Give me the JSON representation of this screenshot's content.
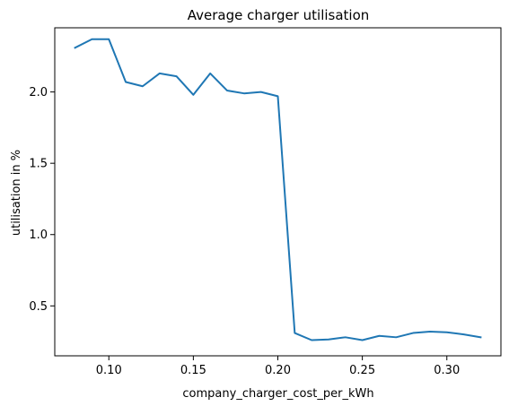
{
  "chart_data": {
    "type": "line",
    "title": "Average charger utilisation",
    "xlabel": "company_charger_cost_per_kWh",
    "ylabel": "utilisation in %",
    "xlim": [
      0.068,
      0.332
    ],
    "ylim": [
      0.15,
      2.45
    ],
    "xticks": [
      0.1,
      0.15,
      0.2,
      0.25,
      0.3
    ],
    "xtick_labels": [
      "0.10",
      "0.15",
      "0.20",
      "0.25",
      "0.30"
    ],
    "yticks": [
      0.5,
      1.0,
      1.5,
      2.0
    ],
    "ytick_labels": [
      "0.5",
      "1.0",
      "1.5",
      "2.0"
    ],
    "grid": false,
    "line_color": "#1f77b4",
    "series": [
      {
        "x": [
          0.08,
          0.09,
          0.1,
          0.11,
          0.12,
          0.13,
          0.14,
          0.15,
          0.16,
          0.17,
          0.18,
          0.19,
          0.2,
          0.21,
          0.22,
          0.23,
          0.24,
          0.25,
          0.26,
          0.27,
          0.28,
          0.29,
          0.3,
          0.31,
          0.32
        ],
        "values": [
          2.31,
          2.37,
          2.37,
          2.07,
          2.04,
          2.13,
          2.11,
          1.98,
          2.13,
          2.01,
          1.99,
          2.0,
          1.97,
          0.31,
          0.26,
          0.265,
          0.28,
          0.26,
          0.29,
          0.28,
          0.31,
          0.32,
          0.315,
          0.3,
          0.28
        ]
      }
    ]
  }
}
